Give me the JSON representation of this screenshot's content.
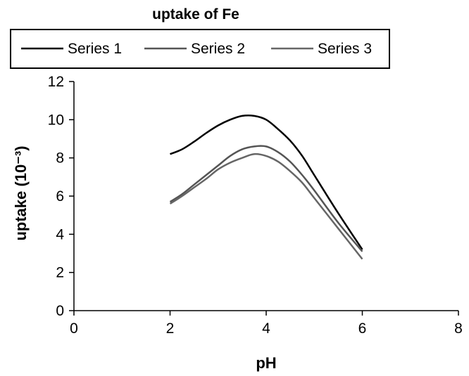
{
  "chart_data": {
    "type": "line",
    "title": "uptake of Fe",
    "xlabel": "pH",
    "ylabel": "uptake (10⁻³)",
    "xlim": [
      0,
      8
    ],
    "ylim": [
      0,
      12
    ],
    "xticks": [
      0,
      2,
      4,
      6,
      8
    ],
    "yticks": [
      0,
      2,
      4,
      6,
      8,
      10,
      12
    ],
    "grid": false,
    "legend_position": "top",
    "series": [
      {
        "name": "Series 1",
        "color": "#000000",
        "x": [
          2.0,
          2.25,
          2.5,
          2.75,
          3.0,
          3.25,
          3.5,
          3.75,
          4.0,
          4.25,
          4.5,
          4.75,
          5.0,
          5.5,
          6.0
        ],
        "y": [
          8.2,
          8.45,
          8.85,
          9.3,
          9.7,
          10.0,
          10.2,
          10.2,
          10.0,
          9.5,
          8.9,
          8.1,
          7.1,
          5.1,
          3.2
        ]
      },
      {
        "name": "Series 2",
        "color": "#555555",
        "x": [
          2.0,
          2.25,
          2.5,
          2.75,
          3.0,
          3.25,
          3.5,
          3.75,
          4.0,
          4.25,
          4.5,
          4.75,
          5.0,
          5.5,
          6.0
        ],
        "y": [
          5.7,
          6.1,
          6.6,
          7.1,
          7.6,
          8.1,
          8.45,
          8.6,
          8.6,
          8.3,
          7.8,
          7.1,
          6.3,
          4.6,
          3.1
        ]
      },
      {
        "name": "Series 3",
        "color": "#666666",
        "x": [
          2.0,
          2.25,
          2.5,
          2.75,
          3.0,
          3.25,
          3.5,
          3.75,
          4.0,
          4.25,
          4.5,
          4.75,
          5.0,
          5.5,
          6.0
        ],
        "y": [
          5.6,
          6.0,
          6.45,
          6.9,
          7.4,
          7.75,
          8.0,
          8.2,
          8.1,
          7.8,
          7.3,
          6.7,
          5.9,
          4.3,
          2.7
        ]
      }
    ]
  }
}
